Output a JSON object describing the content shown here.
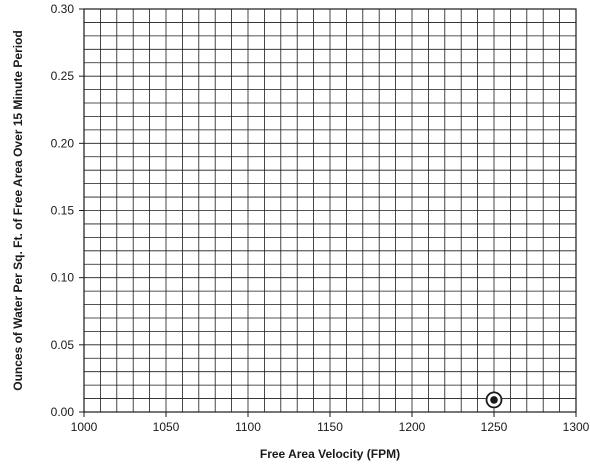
{
  "chart_data": {
    "type": "scatter",
    "xlabel": "Free Area Velocity (FPM)",
    "ylabel": "Ounces of Water Per Sq. Ft. of Free Area Over 15 Minute Period",
    "xlim": [
      1000,
      1300
    ],
    "ylim": [
      0,
      0.3
    ],
    "x_ticks": [
      1000,
      1050,
      1100,
      1150,
      1200,
      1250,
      1300
    ],
    "x_tick_labels": [
      "1000",
      "1050",
      "1100",
      "1150",
      "1200",
      "1250",
      "1300"
    ],
    "y_ticks": [
      0,
      0.05,
      0.1,
      0.15,
      0.2,
      0.25,
      0.3
    ],
    "y_tick_labels": [
      "0.00",
      "0.05",
      "0.10",
      "0.15",
      "0.20",
      "0.25",
      "0.30"
    ],
    "grid": true,
    "x_minor_step": 10,
    "y_minor_step": 0.01,
    "points": [
      {
        "x": 1250,
        "y": 0.009,
        "marker": "bullseye"
      }
    ],
    "colors": {
      "line": "#1a1a1a",
      "background": "#ffffff"
    }
  }
}
